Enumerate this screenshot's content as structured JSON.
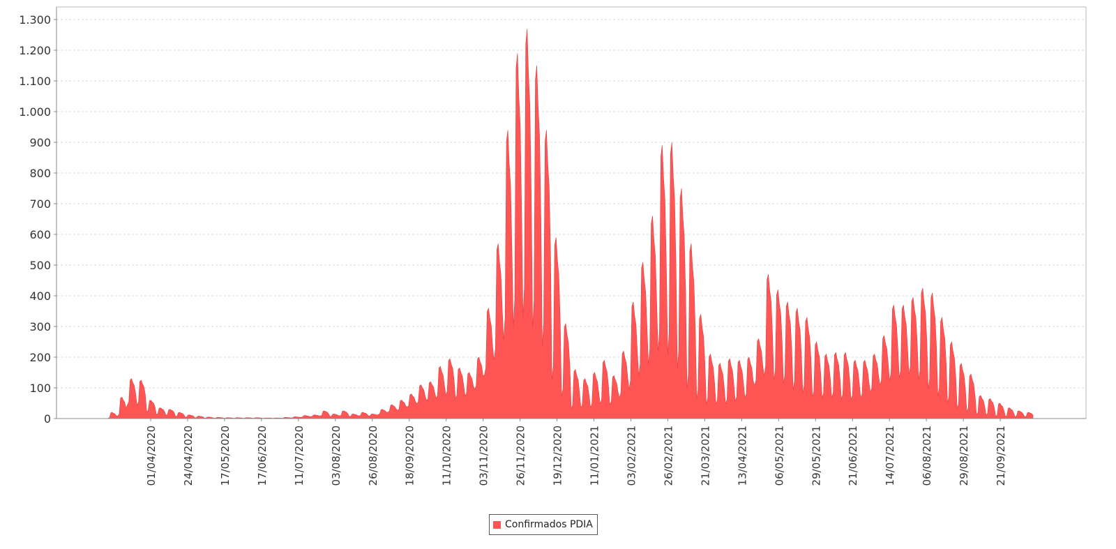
{
  "chart_data": {
    "type": "area",
    "title": "",
    "xlabel": "",
    "ylabel": "",
    "ylim": [
      0,
      1300
    ],
    "yticks": [
      "0",
      "100",
      "200",
      "300",
      "400",
      "500",
      "600",
      "700",
      "800",
      "900",
      "1.000",
      "1.100",
      "1.200",
      "1.300"
    ],
    "grid": true,
    "legend_position": "bottom",
    "x_tick_labels": [
      "01/04/2020",
      "24/04/2020",
      "17/05/2020",
      "17/06/2020",
      "11/07/2020",
      "03/08/2020",
      "26/08/2020",
      "18/09/2020",
      "11/10/2020",
      "03/11/2020",
      "26/11/2020",
      "19/12/2020",
      "11/01/2021",
      "03/02/2021",
      "26/02/2021",
      "21/03/2021",
      "13/04/2021",
      "06/05/2021",
      "29/05/2021",
      "21/06/2021",
      "14/07/2021",
      "06/08/2021",
      "29/08/2021",
      "21/09/2021"
    ],
    "x_range_dates": [
      "04/03/2020",
      "12/10/2021"
    ],
    "series": [
      {
        "name": "Confirmados PDIA",
        "color": "#ff5555",
        "weekly_peaks": [
          20,
          70,
          130,
          125,
          60,
          35,
          30,
          20,
          12,
          8,
          5,
          4,
          3,
          3,
          3,
          3,
          2,
          2,
          4,
          6,
          10,
          12,
          25,
          15,
          25,
          15,
          20,
          15,
          30,
          45,
          60,
          80,
          110,
          120,
          170,
          195,
          165,
          150,
          200,
          360,
          570,
          940,
          1190,
          1270,
          1150,
          940,
          590,
          310,
          160,
          130,
          150,
          190,
          140,
          220,
          380,
          510,
          660,
          890,
          900,
          750,
          570,
          340,
          210,
          180,
          195,
          190,
          200,
          260,
          470,
          420,
          380,
          360,
          330,
          250,
          210,
          215,
          215,
          190,
          190,
          210,
          270,
          370,
          370,
          395,
          425,
          410,
          330,
          250,
          180,
          145,
          75,
          65,
          50,
          35,
          25,
          20
        ],
        "weekly_troughs": [
          0,
          5,
          40,
          40,
          20,
          12,
          10,
          6,
          4,
          2,
          1,
          1,
          1,
          1,
          1,
          1,
          1,
          1,
          1,
          2,
          4,
          6,
          8,
          6,
          8,
          6,
          8,
          8,
          12,
          20,
          25,
          35,
          45,
          55,
          60,
          70,
          60,
          70,
          90,
          130,
          170,
          220,
          250,
          280,
          250,
          200,
          100,
          60,
          25,
          30,
          30,
          40,
          40,
          60,
          80,
          120,
          150,
          180,
          170,
          130,
          70,
          50,
          40,
          40,
          40,
          50,
          60,
          100,
          120,
          110,
          100,
          80,
          70,
          60,
          60,
          60,
          55,
          55,
          60,
          80,
          100,
          110,
          120,
          130,
          110,
          80,
          60,
          40,
          25,
          15,
          10,
          8,
          5,
          5,
          5,
          5
        ]
      }
    ]
  },
  "legend": {
    "label": "Confirmados PDIA",
    "color": "#ff5555"
  },
  "colors": {
    "area": "#ff5555",
    "grid": "#d8d8d8",
    "axis": "#888888",
    "frame": "#bbbbbb"
  }
}
